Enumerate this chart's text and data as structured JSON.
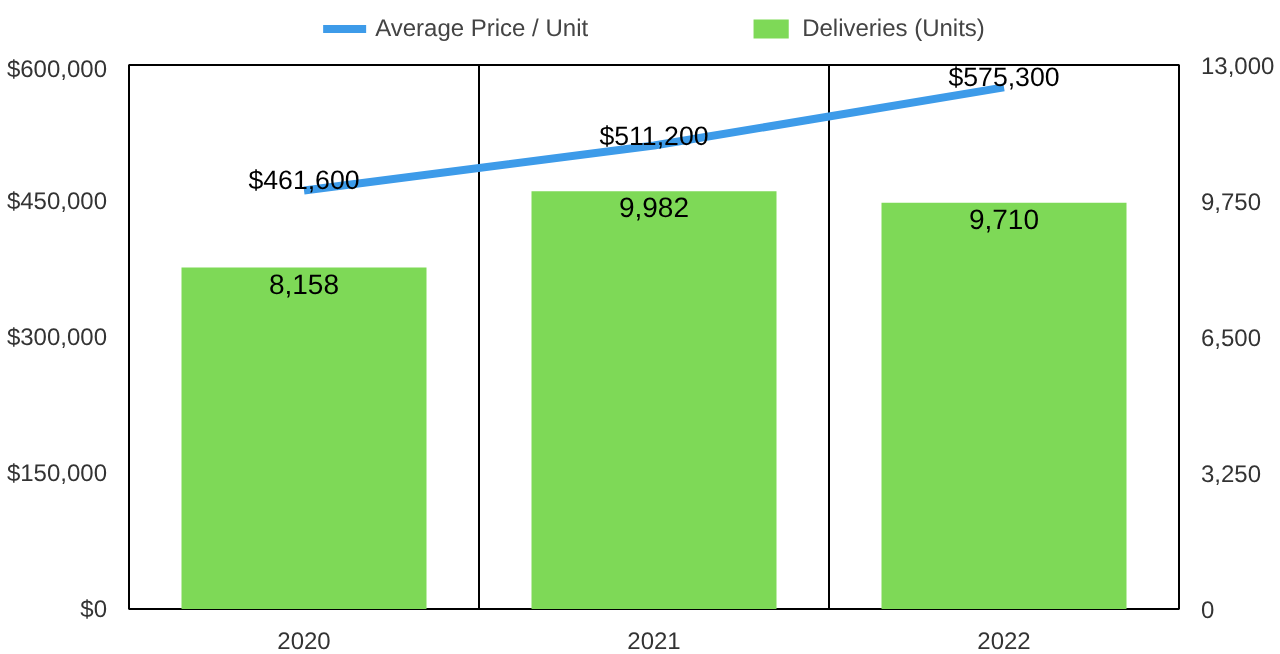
{
  "chart_data": {
    "type": "bar",
    "categories": [
      "2020",
      "2021",
      "2022"
    ],
    "series": [
      {
        "name": "Deliveries (Units)",
        "axis": "y2",
        "color": "#7ed957",
        "values": [
          8158,
          9982,
          9710
        ],
        "value_labels": [
          "8,158",
          "9,982",
          "9,710"
        ]
      },
      {
        "name": "Average Price / Unit",
        "type": "line",
        "axis": "y",
        "color": "#3d9be9",
        "values": [
          461600,
          511200,
          575300
        ],
        "value_labels": [
          "$461,600",
          "$511,200",
          "$575,300"
        ]
      }
    ],
    "ylim": [
      0,
      600000
    ],
    "yticks": [
      {
        "value": 0,
        "label": "$0"
      },
      {
        "value": 150000,
        "label": "$150,000"
      },
      {
        "value": 300000,
        "label": "$300,000"
      },
      {
        "value": 450000,
        "label": "$450,000"
      },
      {
        "value": 600000,
        "label": "$600,000"
      }
    ],
    "y2lim": [
      0,
      13000
    ],
    "y2ticks": [
      0,
      {
        "value": 3250,
        "label": "3,250"
      },
      {
        "value": 6500,
        "label": "6,500"
      },
      {
        "value": 9750,
        "label": "9,750"
      },
      {
        "value": 13000,
        "label": "13,000"
      }
    ],
    "grid": "x",
    "legend": "top",
    "marker": "none",
    "line_style": "solid"
  }
}
